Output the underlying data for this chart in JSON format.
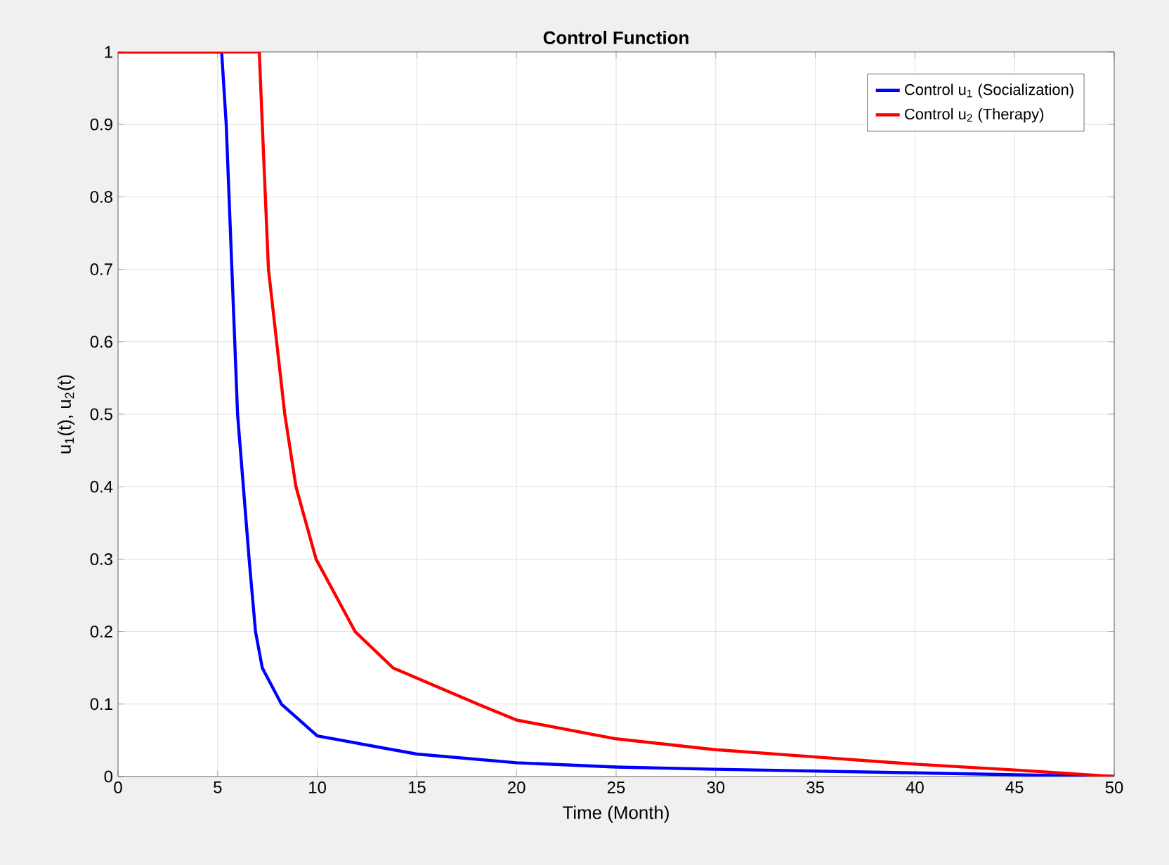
{
  "chart_data": {
    "type": "line",
    "title": "Control Function",
    "xlabel": "Time (Month)",
    "ylabel": "u$_{1}$(t), u$_{2}$(t)",
    "xlim": [
      0,
      50
    ],
    "ylim": [
      0,
      1
    ],
    "xticks": [
      0,
      5,
      10,
      15,
      20,
      25,
      30,
      35,
      40,
      45,
      50
    ],
    "yticks": [
      0,
      0.1,
      0.2,
      0.3,
      0.4,
      0.5,
      0.6,
      0.7,
      0.8,
      0.9,
      1
    ],
    "grid": true,
    "legend": "top right",
    "line_style": "solid",
    "marker": "none",
    "series": [
      {
        "name": "Control u$_{1}$ (Socialization)",
        "color": "#0000ff",
        "x": [
          0,
          5.2,
          5.43,
          6.0,
          6.58,
          6.9,
          7.24,
          8.2,
          10,
          15,
          20,
          25,
          30,
          40,
          50
        ],
        "values": [
          1,
          1,
          0.9,
          0.5,
          0.3,
          0.2,
          0.15,
          0.1,
          0.056,
          0.031,
          0.019,
          0.013,
          0.01,
          0.005,
          0
        ]
      },
      {
        "name": "Control u$_{2}$ (Therapy)",
        "color": "#ff0000",
        "x": [
          0,
          7.09,
          7.24,
          7.55,
          8.37,
          8.93,
          9.94,
          11.9,
          13.8,
          18.05,
          20,
          25,
          30,
          35,
          40,
          45,
          50
        ],
        "values": [
          1,
          1,
          0.9,
          0.7,
          0.5,
          0.4,
          0.3,
          0.2,
          0.15,
          0.1,
          0.078,
          0.052,
          0.037,
          0.027,
          0.017,
          0.009,
          0
        ]
      }
    ]
  }
}
